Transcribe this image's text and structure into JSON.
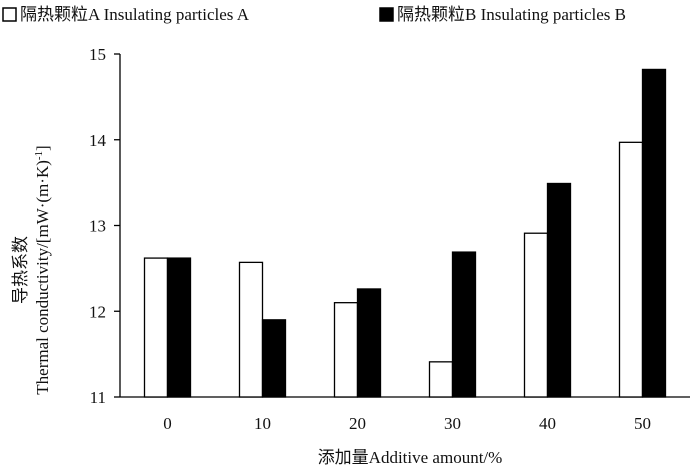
{
  "chart_data": {
    "type": "bar",
    "categories": [
      "0",
      "10",
      "20",
      "30",
      "40",
      "50"
    ],
    "series": [
      {
        "name": "隔热颗粒A Insulating particles A",
        "values": [
          12.62,
          12.57,
          12.1,
          11.41,
          12.91,
          13.97
        ],
        "fill": "#ffffff",
        "stroke": "#000000"
      },
      {
        "name": "隔热颗粒B Insulating particles B",
        "values": [
          12.62,
          11.9,
          12.26,
          12.69,
          13.49,
          14.82
        ],
        "fill": "#000000",
        "stroke": "#000000"
      }
    ],
    "ylim": [
      11,
      15
    ],
    "yticks": [
      "11",
      "12",
      "13",
      "14",
      "15"
    ],
    "xlabel": "添加量Additive amount/%",
    "ylabel_line1": "导热系数",
    "ylabel_line2": "Thermal conductivity/[mW·(m·K)",
    "ylabel_sup": "-1",
    "ylabel_close": "]",
    "legend_position": "top",
    "grid": false
  }
}
